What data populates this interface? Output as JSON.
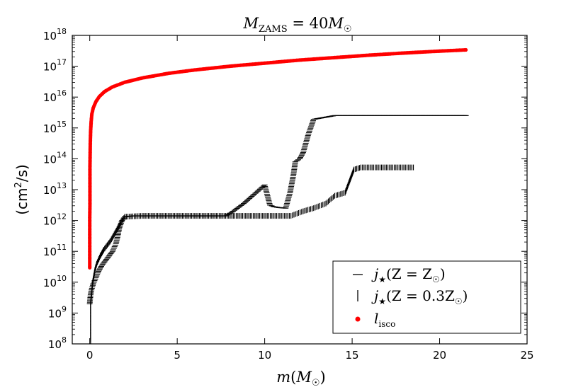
{
  "chart_data": {
    "type": "scatter",
    "title": {
      "prefix": "M",
      "subscript": "ZAMS",
      "eq": " = 40",
      "mass": "M",
      "sun": "☉"
    },
    "xlabel": {
      "var": "m",
      "open": "(",
      "mass": "M",
      "sun": "☉",
      "close": ")"
    },
    "ylabel": {
      "prefix": "(cm",
      "sup": "2",
      "suffix": "/s)"
    },
    "xlim": [
      -1,
      25
    ],
    "ylim_log10": [
      8,
      18
    ],
    "x_ticks": [
      "0",
      "5",
      "10",
      "15",
      "20",
      "25"
    ],
    "x_tick_values": [
      0,
      5,
      10,
      15,
      20,
      25
    ],
    "y_ticks": [
      {
        "base": "10",
        "exp": "8"
      },
      {
        "base": "10",
        "exp": "9"
      },
      {
        "base": "10",
        "exp": "10"
      },
      {
        "base": "10",
        "exp": "11"
      },
      {
        "base": "10",
        "exp": "12"
      },
      {
        "base": "10",
        "exp": "13"
      },
      {
        "base": "10",
        "exp": "14"
      },
      {
        "base": "10",
        "exp": "15"
      },
      {
        "base": "10",
        "exp": "16"
      },
      {
        "base": "10",
        "exp": "17"
      },
      {
        "base": "10",
        "exp": "18"
      }
    ],
    "y_tick_values": [
      8,
      9,
      10,
      11,
      12,
      13,
      14,
      15,
      16,
      17,
      18
    ],
    "legend_position": "lower right",
    "series": [
      {
        "name": "j_star_solar",
        "legend": {
          "sym": "j",
          "star": "★",
          "rest": "(Z = Z",
          "sun": "☉",
          "close": ")"
        },
        "marker": "hline",
        "color": "#000000",
        "points_log10": [
          [
            0.0,
            9.3
          ],
          [
            0.02,
            9.45
          ],
          [
            0.05,
            9.6
          ],
          [
            0.1,
            9.75
          ],
          [
            0.2,
            9.95
          ],
          [
            0.35,
            10.15
          ],
          [
            0.5,
            10.35
          ],
          [
            0.7,
            10.55
          ],
          [
            0.9,
            10.7
          ],
          [
            1.1,
            10.85
          ],
          [
            1.3,
            11.0
          ],
          [
            1.5,
            11.25
          ],
          [
            1.6,
            11.5
          ],
          [
            1.7,
            11.78
          ],
          [
            1.85,
            12.0
          ],
          [
            2.0,
            12.12
          ],
          [
            2.5,
            12.15
          ],
          [
            4.0,
            12.15
          ],
          [
            6.0,
            12.15
          ],
          [
            7.8,
            12.15
          ],
          [
            8.2,
            12.3
          ],
          [
            8.8,
            12.55
          ],
          [
            9.4,
            12.85
          ],
          [
            10.0,
            13.15
          ],
          [
            10.3,
            12.5
          ],
          [
            10.5,
            12.45
          ],
          [
            10.8,
            12.42
          ],
          [
            11.2,
            12.4
          ],
          [
            11.3,
            12.6
          ],
          [
            11.45,
            12.9
          ],
          [
            11.65,
            13.5
          ],
          [
            11.75,
            13.9
          ],
          [
            12.0,
            14.0
          ],
          [
            12.2,
            14.2
          ],
          [
            12.5,
            14.8
          ],
          [
            12.8,
            15.28
          ],
          [
            14.0,
            15.4
          ],
          [
            16.0,
            15.4
          ],
          [
            18.0,
            15.4
          ],
          [
            20.0,
            15.4
          ],
          [
            21.5,
            15.4
          ]
        ]
      },
      {
        "name": "j_star_03solar",
        "legend": {
          "sym": "j",
          "star": "★",
          "rest": "(Z = 0.3Z",
          "sun": "☉",
          "close": ")"
        },
        "marker": "vline",
        "color": "#000000",
        "points_log10": [
          [
            0.05,
            8.1
          ],
          [
            0.05,
            8.4
          ],
          [
            0.05,
            8.7
          ],
          [
            0.05,
            9.0
          ],
          [
            0.05,
            9.3
          ],
          [
            0.1,
            9.6
          ],
          [
            0.15,
            9.9
          ],
          [
            0.2,
            10.1
          ],
          [
            0.3,
            10.4
          ],
          [
            0.4,
            10.6
          ],
          [
            0.6,
            10.85
          ],
          [
            0.8,
            11.05
          ],
          [
            1.0,
            11.2
          ],
          [
            1.2,
            11.35
          ],
          [
            1.4,
            11.55
          ],
          [
            1.6,
            11.75
          ],
          [
            1.8,
            11.95
          ],
          [
            2.0,
            12.12
          ],
          [
            3.0,
            12.15
          ],
          [
            4.5,
            12.15
          ],
          [
            6.0,
            12.15
          ],
          [
            7.5,
            12.15
          ],
          [
            9.0,
            12.15
          ],
          [
            10.5,
            12.15
          ],
          [
            11.5,
            12.15
          ],
          [
            12.2,
            12.3
          ],
          [
            12.8,
            12.4
          ],
          [
            13.5,
            12.55
          ],
          [
            14.0,
            12.8
          ],
          [
            14.6,
            12.9
          ],
          [
            14.8,
            13.2
          ],
          [
            15.1,
            13.65
          ],
          [
            15.5,
            13.72
          ],
          [
            16.5,
            13.72
          ],
          [
            17.5,
            13.72
          ],
          [
            18.5,
            13.72
          ]
        ]
      },
      {
        "name": "l_isco",
        "legend": {
          "sym": "l",
          "sub": "isco"
        },
        "marker": "dot",
        "color": "#ff0000",
        "points_log10": [
          [
            0.0,
            10.47
          ],
          [
            0.0,
            10.9
          ],
          [
            0.0,
            11.3
          ],
          [
            0.0,
            11.7
          ],
          [
            0.0,
            12.1
          ],
          [
            0.01,
            12.5
          ],
          [
            0.01,
            12.9
          ],
          [
            0.01,
            13.3
          ],
          [
            0.01,
            13.7
          ],
          [
            0.02,
            14.1
          ],
          [
            0.03,
            14.5
          ],
          [
            0.05,
            14.9
          ],
          [
            0.08,
            15.2
          ],
          [
            0.12,
            15.45
          ],
          [
            0.2,
            15.65
          ],
          [
            0.35,
            15.85
          ],
          [
            0.55,
            16.02
          ],
          [
            0.85,
            16.18
          ],
          [
            1.3,
            16.33
          ],
          [
            2.0,
            16.48
          ],
          [
            3.0,
            16.62
          ],
          [
            4.5,
            16.77
          ],
          [
            6.0,
            16.88
          ],
          [
            8.0,
            17.0
          ],
          [
            10.0,
            17.1
          ],
          [
            12.0,
            17.2
          ],
          [
            14.0,
            17.28
          ],
          [
            16.0,
            17.36
          ],
          [
            18.0,
            17.43
          ],
          [
            20.0,
            17.49
          ],
          [
            21.5,
            17.53
          ]
        ]
      }
    ]
  }
}
